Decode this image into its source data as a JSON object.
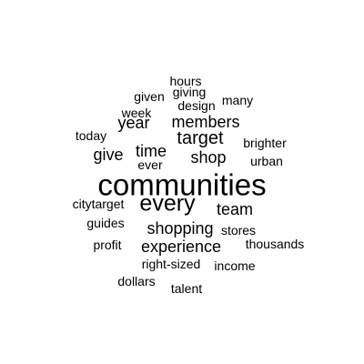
{
  "background_color": "#ffffff",
  "text_color": "#000000",
  "words": {
    "hours": "hours",
    "giving": "giving",
    "given": "given",
    "many": "many",
    "design": "design",
    "week": "week",
    "year": "year",
    "members": "members",
    "today": "today",
    "target": "target",
    "brighter": "brighter",
    "give": "give",
    "time": "time",
    "shop": "shop",
    "urban": "urban",
    "ever": "ever",
    "communities": "communities",
    "every": "every",
    "citytarget": "citytarget",
    "team": "team",
    "guides": "guides",
    "shopping": "shopping",
    "stores": "stores",
    "profit": "profit",
    "experience": "experience",
    "thousands": "thousands",
    "right_sized": "right-sized",
    "income": "income",
    "dollars": "dollars",
    "talent": "talent"
  }
}
